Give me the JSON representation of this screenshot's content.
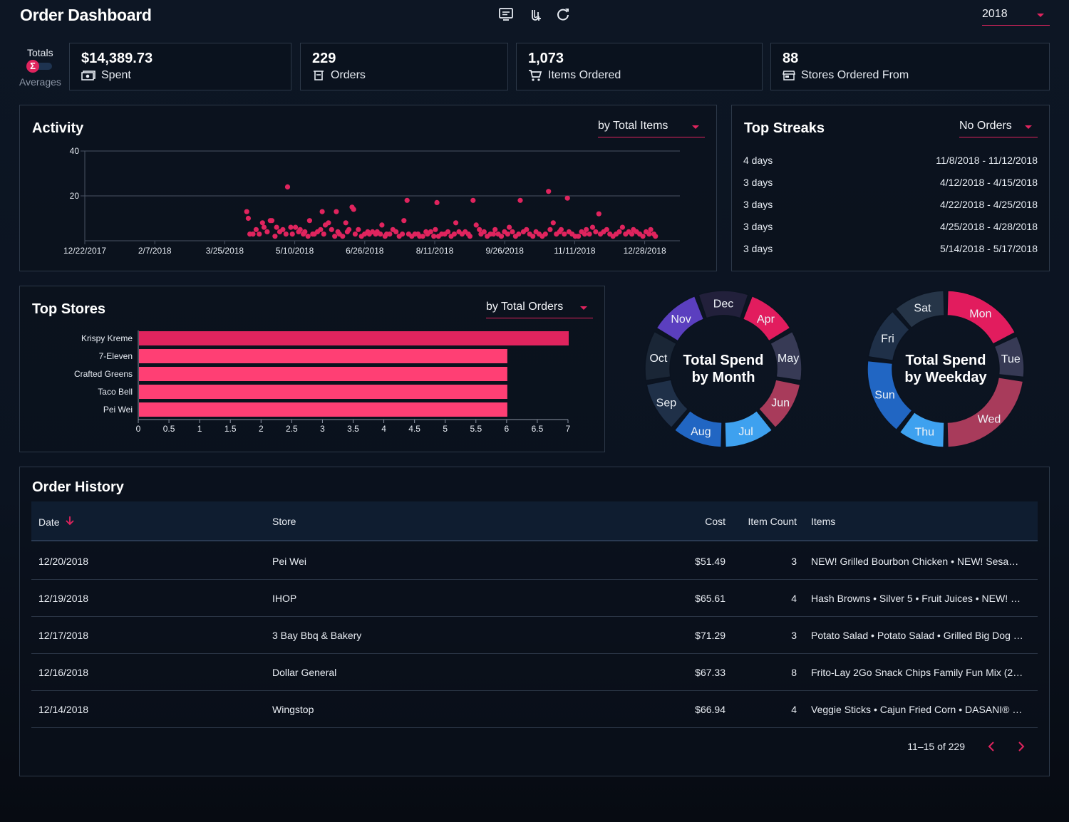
{
  "header": {
    "title": "Order Dashboard",
    "year": "2018"
  },
  "toggle": {
    "top": "Totals",
    "bottom": "Averages",
    "symbol": "Σ"
  },
  "stats": [
    {
      "value": "$14,389.73",
      "label": "Spent",
      "icon": "money-icon"
    },
    {
      "value": "229",
      "label": "Orders",
      "icon": "receipt-icon"
    },
    {
      "value": "1,073",
      "label": "Items Ordered",
      "icon": "cart-icon"
    },
    {
      "value": "88",
      "label": "Stores Ordered From",
      "icon": "store-icon"
    }
  ],
  "activity": {
    "title": "Activity",
    "dropdown": "by Total Items",
    "y_ticks": [
      "40",
      "20"
    ],
    "x_ticks": [
      "12/22/2017",
      "2/7/2018",
      "3/25/2018",
      "5/10/2018",
      "6/26/2018",
      "8/11/2018",
      "9/26/2018",
      "11/11/2018",
      "12/28/2018"
    ]
  },
  "streaks": {
    "title": "Top Streaks",
    "dropdown": "No Orders",
    "rows": [
      {
        "length": "4 days",
        "range": "11/8/2018 - 11/12/2018"
      },
      {
        "length": "3 days",
        "range": "4/12/2018 - 4/15/2018"
      },
      {
        "length": "3 days",
        "range": "4/22/2018 - 4/25/2018"
      },
      {
        "length": "3 days",
        "range": "4/25/2018 - 4/28/2018"
      },
      {
        "length": "3 days",
        "range": "5/14/2018 - 5/17/2018"
      }
    ]
  },
  "top_stores": {
    "title": "Top Stores",
    "dropdown": "by Total Orders"
  },
  "month_donut": {
    "title_line1": "Total Spend",
    "title_line2": "by Month"
  },
  "weekday_donut": {
    "title_line1": "Total Spend",
    "title_line2": "by Weekday"
  },
  "order_history": {
    "title": "Order History",
    "columns": {
      "date": "Date",
      "store": "Store",
      "cost": "Cost",
      "item_count": "Item Count",
      "items": "Items"
    },
    "rows": [
      {
        "date": "12/20/2018",
        "store": "Pei Wei",
        "cost": "$51.49",
        "count": "3",
        "items": "NEW! Grilled Bourbon Chicken • NEW! Sesa…"
      },
      {
        "date": "12/19/2018",
        "store": "IHOP",
        "cost": "$65.61",
        "count": "4",
        "items": "Hash Browns • Silver 5 • Fruit Juices • NEW! …"
      },
      {
        "date": "12/17/2018",
        "store": "3 Bay Bbq & Bakery",
        "cost": "$71.29",
        "count": "3",
        "items": "Potato Salad • Potato Salad • Grilled Big Dog …"
      },
      {
        "date": "12/16/2018",
        "store": "Dollar General",
        "cost": "$67.33",
        "count": "8",
        "items": "Frito-Lay 2Go Snack Chips Family Fun Mix (2…"
      },
      {
        "date": "12/14/2018",
        "store": "Wingstop",
        "cost": "$66.94",
        "count": "4",
        "items": "Veggie Sticks • Cajun Fried Corn • DASANI® …"
      }
    ],
    "pagination": "11–15 of 229"
  },
  "chart_data": [
    {
      "type": "scatter",
      "title": "Activity",
      "ylabel": "",
      "xlabel": "",
      "x_tick_labels": [
        "12/22/2017",
        "2/7/2018",
        "3/25/2018",
        "5/10/2018",
        "6/26/2018",
        "8/11/2018",
        "9/26/2018",
        "11/11/2018",
        "12/28/2018"
      ],
      "ylim": [
        0,
        40
      ],
      "y_ticks": [
        20,
        40
      ],
      "points": [
        [
          "2018-04-04",
          13
        ],
        [
          "2018-04-05",
          10
        ],
        [
          "2018-04-06",
          3
        ],
        [
          "2018-04-08",
          3
        ],
        [
          "2018-04-10",
          5
        ],
        [
          "2018-04-12",
          3
        ],
        [
          "2018-04-14",
          8
        ],
        [
          "2018-04-15",
          6
        ],
        [
          "2018-04-17",
          4
        ],
        [
          "2018-04-19",
          9
        ],
        [
          "2018-04-20",
          9
        ],
        [
          "2018-04-22",
          2
        ],
        [
          "2018-04-23",
          6
        ],
        [
          "2018-04-25",
          4
        ],
        [
          "2018-04-27",
          5
        ],
        [
          "2018-04-29",
          3
        ],
        [
          "2018-04-30",
          24
        ],
        [
          "2018-05-02",
          6
        ],
        [
          "2018-05-03",
          3
        ],
        [
          "2018-05-05",
          6
        ],
        [
          "2018-05-07",
          4
        ],
        [
          "2018-05-08",
          5
        ],
        [
          "2018-05-10",
          3
        ],
        [
          "2018-05-11",
          4
        ],
        [
          "2018-05-13",
          2
        ],
        [
          "2018-05-14",
          9
        ],
        [
          "2018-05-16",
          3
        ],
        [
          "2018-05-17",
          3
        ],
        [
          "2018-05-19",
          4
        ],
        [
          "2018-05-21",
          5
        ],
        [
          "2018-05-22",
          13
        ],
        [
          "2018-05-23",
          3
        ],
        [
          "2018-05-24",
          7
        ],
        [
          "2018-05-26",
          8
        ],
        [
          "2018-05-28",
          5
        ],
        [
          "2018-05-30",
          2
        ],
        [
          "2018-05-31",
          13
        ],
        [
          "2018-06-01",
          4
        ],
        [
          "2018-06-02",
          3
        ],
        [
          "2018-06-04",
          2
        ],
        [
          "2018-06-06",
          8
        ],
        [
          "2018-06-07",
          4
        ],
        [
          "2018-06-08",
          5
        ],
        [
          "2018-06-10",
          15
        ],
        [
          "2018-06-11",
          14
        ],
        [
          "2018-06-12",
          3
        ],
        [
          "2018-06-14",
          5
        ],
        [
          "2018-06-16",
          2
        ],
        [
          "2018-06-18",
          3
        ],
        [
          "2018-06-20",
          4
        ],
        [
          "2018-06-21",
          3
        ],
        [
          "2018-06-23",
          4
        ],
        [
          "2018-06-25",
          3
        ],
        [
          "2018-06-26",
          4
        ],
        [
          "2018-06-28",
          3
        ],
        [
          "2018-06-29",
          7
        ],
        [
          "2018-07-01",
          2
        ],
        [
          "2018-07-02",
          3
        ],
        [
          "2018-07-04",
          3
        ],
        [
          "2018-07-06",
          5
        ],
        [
          "2018-07-08",
          4
        ],
        [
          "2018-07-10",
          2
        ],
        [
          "2018-07-12",
          3
        ],
        [
          "2018-07-13",
          9
        ],
        [
          "2018-07-15",
          18
        ],
        [
          "2018-07-16",
          3
        ],
        [
          "2018-07-18",
          2
        ],
        [
          "2018-07-20",
          3
        ],
        [
          "2018-07-22",
          3
        ],
        [
          "2018-07-23",
          2
        ],
        [
          "2018-07-25",
          2
        ],
        [
          "2018-07-27",
          4
        ],
        [
          "2018-07-28",
          3
        ],
        [
          "2018-07-30",
          4
        ],
        [
          "2018-08-01",
          2
        ],
        [
          "2018-08-02",
          5
        ],
        [
          "2018-08-03",
          17
        ],
        [
          "2018-08-04",
          2
        ],
        [
          "2018-08-06",
          3
        ],
        [
          "2018-08-08",
          3
        ],
        [
          "2018-08-10",
          4
        ],
        [
          "2018-08-12",
          2
        ],
        [
          "2018-08-14",
          3
        ],
        [
          "2018-08-15",
          8
        ],
        [
          "2018-08-17",
          4
        ],
        [
          "2018-08-19",
          3
        ],
        [
          "2018-08-21",
          4
        ],
        [
          "2018-08-23",
          3
        ],
        [
          "2018-08-24",
          2
        ],
        [
          "2018-08-26",
          18
        ],
        [
          "2018-08-28",
          7
        ],
        [
          "2018-08-30",
          5
        ],
        [
          "2018-08-31",
          3
        ],
        [
          "2018-09-02",
          4
        ],
        [
          "2018-09-04",
          2
        ],
        [
          "2018-09-06",
          3
        ],
        [
          "2018-09-08",
          3
        ],
        [
          "2018-09-09",
          5
        ],
        [
          "2018-09-11",
          3
        ],
        [
          "2018-09-13",
          2
        ],
        [
          "2018-09-15",
          4
        ],
        [
          "2018-09-17",
          3
        ],
        [
          "2018-09-18",
          6
        ],
        [
          "2018-09-20",
          4
        ],
        [
          "2018-09-22",
          2
        ],
        [
          "2018-09-24",
          3
        ],
        [
          "2018-09-25",
          18
        ],
        [
          "2018-09-27",
          4
        ],
        [
          "2018-09-29",
          5
        ],
        [
          "2018-10-01",
          3
        ],
        [
          "2018-10-03",
          2
        ],
        [
          "2018-10-05",
          4
        ],
        [
          "2018-10-07",
          3
        ],
        [
          "2018-10-09",
          2
        ],
        [
          "2018-10-11",
          3
        ],
        [
          "2018-10-13",
          22
        ],
        [
          "2018-10-14",
          5
        ],
        [
          "2018-10-16",
          8
        ],
        [
          "2018-10-18",
          3
        ],
        [
          "2018-10-20",
          4
        ],
        [
          "2018-10-21",
          5
        ],
        [
          "2018-10-23",
          3
        ],
        [
          "2018-10-25",
          19
        ],
        [
          "2018-10-26",
          4
        ],
        [
          "2018-10-28",
          3
        ],
        [
          "2018-10-30",
          2
        ],
        [
          "2018-11-01",
          2
        ],
        [
          "2018-11-03",
          4
        ],
        [
          "2018-11-05",
          3
        ],
        [
          "2018-11-06",
          5
        ],
        [
          "2018-11-08",
          3
        ],
        [
          "2018-11-10",
          6
        ],
        [
          "2018-11-12",
          4
        ],
        [
          "2018-11-14",
          12
        ],
        [
          "2018-11-15",
          3
        ],
        [
          "2018-11-17",
          4
        ],
        [
          "2018-11-19",
          5
        ],
        [
          "2018-11-21",
          3
        ],
        [
          "2018-11-23",
          2
        ],
        [
          "2018-11-25",
          3
        ],
        [
          "2018-11-27",
          4
        ],
        [
          "2018-11-29",
          6
        ],
        [
          "2018-12-01",
          3
        ],
        [
          "2018-12-03",
          4
        ],
        [
          "2018-12-05",
          3
        ],
        [
          "2018-12-06",
          5
        ],
        [
          "2018-12-08",
          4
        ],
        [
          "2018-12-10",
          3
        ],
        [
          "2018-12-12",
          2
        ],
        [
          "2018-12-14",
          4
        ],
        [
          "2018-12-16",
          3
        ],
        [
          "2018-12-17",
          5
        ],
        [
          "2018-12-19",
          3
        ],
        [
          "2018-12-20",
          2
        ]
      ],
      "color": "#e0245e"
    },
    {
      "type": "bar",
      "orientation": "horizontal",
      "title": "Top Stores",
      "categories": [
        "Krispy Kreme",
        "7-Eleven",
        "Crafted Greens",
        "Taco Bell",
        "Pei Wei"
      ],
      "values": [
        7,
        6,
        6,
        6,
        6
      ],
      "xlim": [
        0,
        7
      ],
      "x_ticks": [
        "0",
        "0.5",
        "1",
        "1.5",
        "2",
        "2.5",
        "3",
        "3.5",
        "4",
        "4.5",
        "5",
        "5.5",
        "6",
        "6.5",
        "7"
      ],
      "colors": [
        "#e0245e",
        "#ff3f74",
        "#ff3f74",
        "#ff3f74",
        "#ff3f74"
      ]
    },
    {
      "type": "pie",
      "title": "Total Spend by Month",
      "segments": [
        {
          "label": "Apr",
          "color": "#e21c5e"
        },
        {
          "label": "May",
          "color": "#373a55"
        },
        {
          "label": "Jun",
          "color": "#a83b5b"
        },
        {
          "label": "Jul",
          "color": "#3ea1ef"
        },
        {
          "label": "Aug",
          "color": "#2166c3"
        },
        {
          "label": "Sep",
          "color": "#1f3048"
        },
        {
          "label": "Oct",
          "color": "#1a2636"
        },
        {
          "label": "Nov",
          "color": "#5b3fbf"
        },
        {
          "label": "Dec",
          "color": "#22203b"
        }
      ],
      "values": [
        1,
        1,
        1,
        1,
        1,
        1,
        1,
        1,
        1
      ]
    },
    {
      "type": "pie",
      "title": "Total Spend by Weekday",
      "segments": [
        {
          "label": "Mon",
          "color": "#e21c5e"
        },
        {
          "label": "Tue",
          "color": "#373a55"
        },
        {
          "label": "Wed",
          "color": "#a83b5b"
        },
        {
          "label": "Thu",
          "color": "#3ea1ef"
        },
        {
          "label": "Sun",
          "color": "#2166c3"
        },
        {
          "label": "Fri",
          "color": "#1f3048"
        },
        {
          "label": "Sat",
          "color": "#263548"
        }
      ],
      "values": [
        17,
        9,
        22,
        10,
        16,
        11,
        11
      ]
    }
  ]
}
